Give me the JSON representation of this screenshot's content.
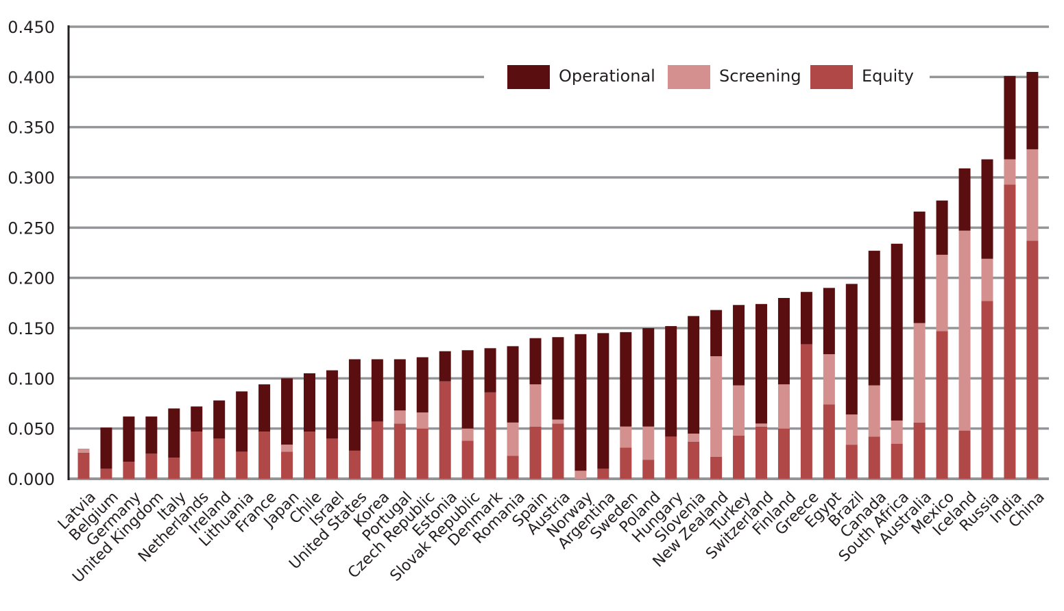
{
  "chart_data": {
    "type": "bar",
    "stacked": true,
    "title": "",
    "xlabel": "",
    "ylabel": "",
    "ylim": [
      0,
      0.45
    ],
    "yticks": [
      "0.000",
      "0.050",
      "0.100",
      "0.150",
      "0.200",
      "0.250",
      "0.300",
      "0.350",
      "0.400",
      "0.450"
    ],
    "grid": true,
    "legend_position": "top-right",
    "categories": [
      "Latvia",
      "Belgium",
      "Germany",
      "United Kingdom",
      "Italy",
      "Netherlands",
      "Ireland",
      "Lithuania",
      "France",
      "Japan",
      "Chile",
      "Israel",
      "United States",
      "Korea",
      "Portugal",
      "Czech Republic",
      "Estonia",
      "Slovak Republic",
      "Denmark",
      "Romania",
      "Spain",
      "Austria",
      "Norway",
      "Argentina",
      "Sweden",
      "Poland",
      "Hungary",
      "Slovenia",
      "New Zealand",
      "Turkey",
      "Switzerland",
      "Finland",
      "Greece",
      "Egypt",
      "Brazil",
      "Canada",
      "South Africa",
      "Australia",
      "Mexico",
      "Iceland",
      "Russia",
      "India",
      "China"
    ],
    "series": [
      {
        "name": "Equity",
        "color": "#b04848",
        "values": [
          0.026,
          0.01,
          0.017,
          0.025,
          0.021,
          0.047,
          0.04,
          0.027,
          0.047,
          0.027,
          0.047,
          0.04,
          0.028,
          0.057,
          0.055,
          0.05,
          0.097,
          0.038,
          0.086,
          0.023,
          0.052,
          0.055,
          0.0,
          0.01,
          0.031,
          0.019,
          0.042,
          0.037,
          0.022,
          0.043,
          0.052,
          0.05,
          0.134,
          0.074,
          0.034,
          0.042,
          0.035,
          0.056,
          0.147,
          0.048,
          0.177,
          0.293,
          0.237
        ]
      },
      {
        "name": "Screening",
        "color": "#d4908e",
        "values": [
          0.004,
          0.0,
          0.0,
          0.0,
          0.0,
          0.0,
          0.0,
          0.0,
          0.0,
          0.007,
          0.0,
          0.0,
          0.0,
          0.0,
          0.013,
          0.016,
          0.0,
          0.012,
          0.0,
          0.033,
          0.042,
          0.004,
          0.008,
          0.0,
          0.021,
          0.033,
          0.0,
          0.008,
          0.1,
          0.05,
          0.003,
          0.044,
          0.0,
          0.05,
          0.03,
          0.051,
          0.023,
          0.099,
          0.076,
          0.199,
          0.042,
          0.025,
          0.091
        ]
      },
      {
        "name": "Operational",
        "color": "#5a0e10",
        "values": [
          0.0,
          0.041,
          0.045,
          0.037,
          0.049,
          0.025,
          0.038,
          0.06,
          0.047,
          0.066,
          0.058,
          0.068,
          0.091,
          0.062,
          0.051,
          0.055,
          0.03,
          0.078,
          0.044,
          0.076,
          0.046,
          0.082,
          0.136,
          0.135,
          0.094,
          0.098,
          0.11,
          0.117,
          0.046,
          0.08,
          0.119,
          0.086,
          0.052,
          0.066,
          0.13,
          0.134,
          0.176,
          0.111,
          0.054,
          0.062,
          0.099,
          0.083,
          0.077
        ]
      }
    ],
    "legend": [
      "Operational",
      "Screening",
      "Equity"
    ]
  }
}
